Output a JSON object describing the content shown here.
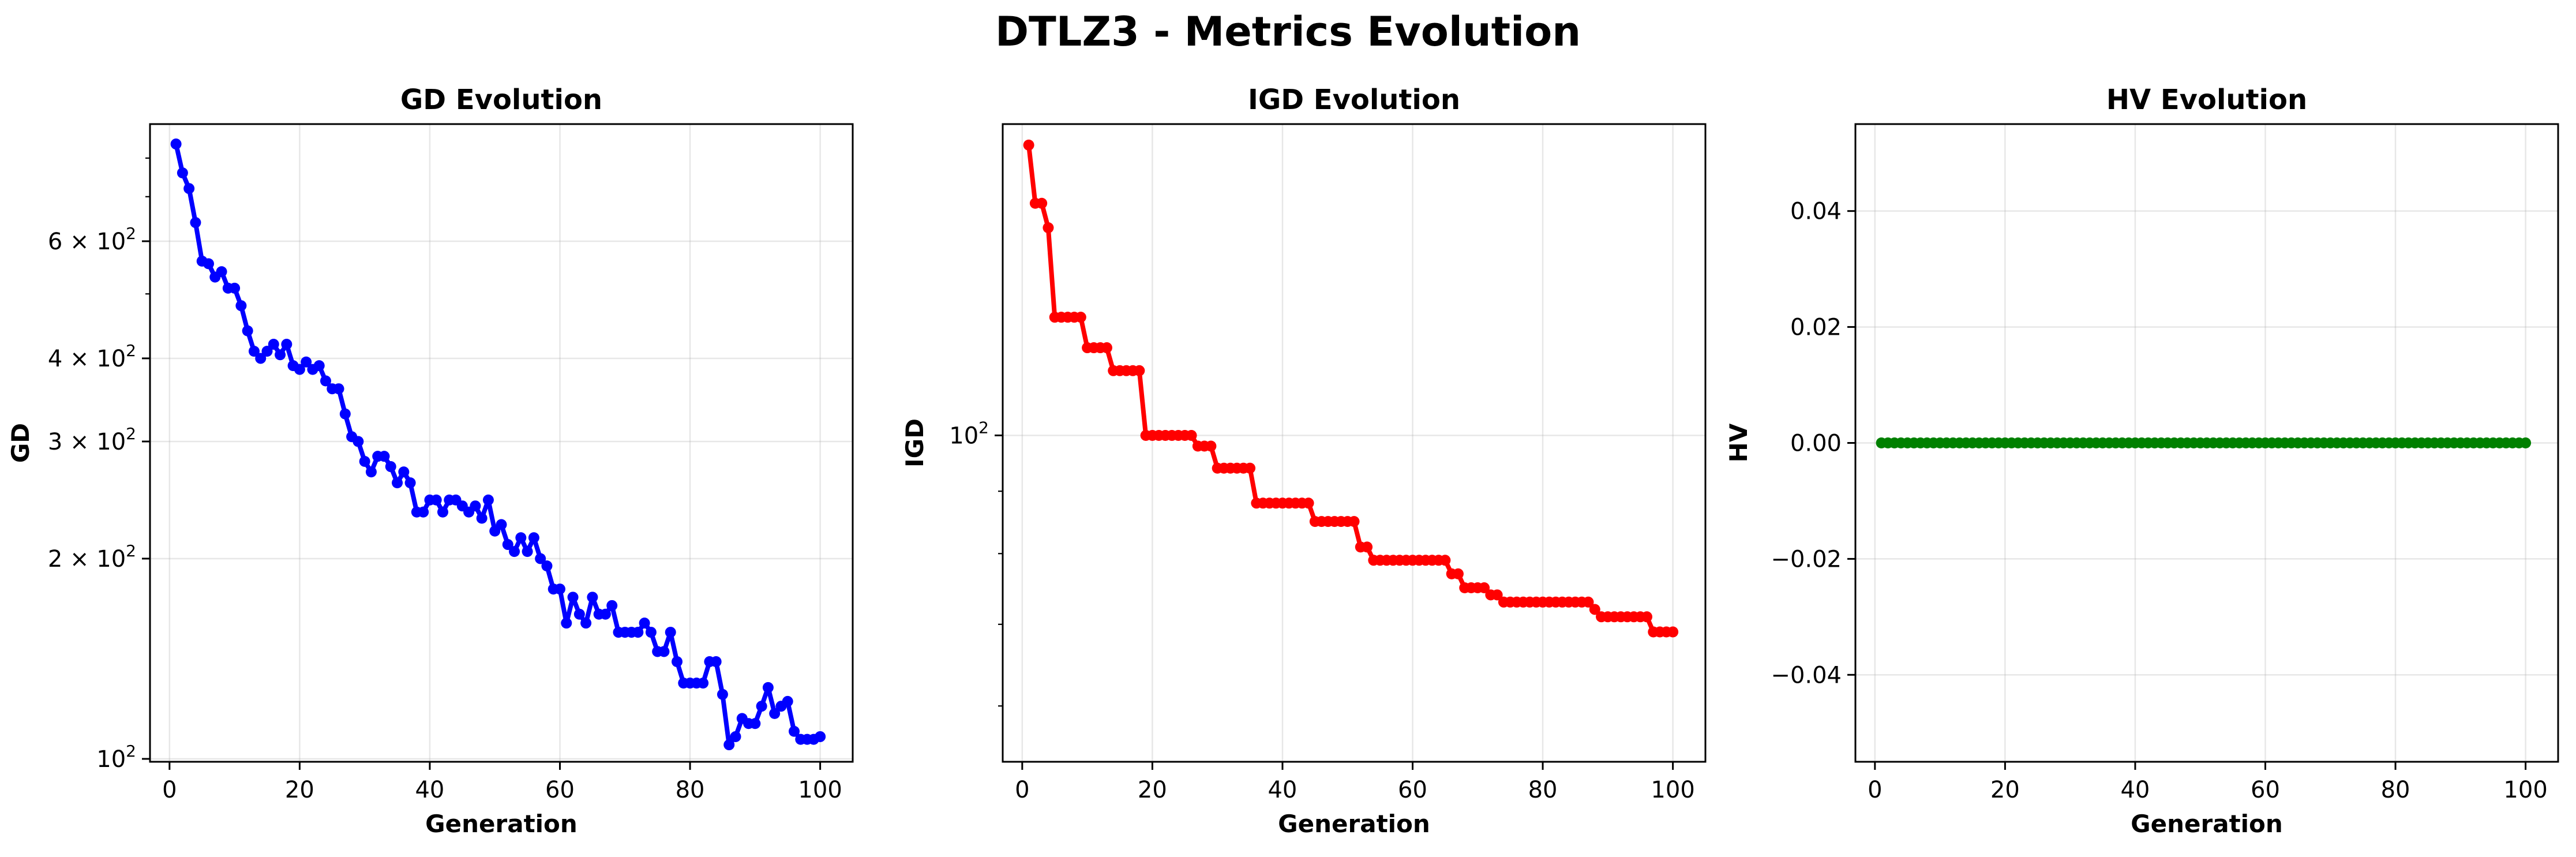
{
  "figure": {
    "title": "DTLZ3 - Metrics Evolution"
  },
  "chart_data": [
    {
      "type": "line",
      "title": "GD Evolution",
      "xlabel": "Generation",
      "ylabel": "GD",
      "yscale": "log",
      "grid": true,
      "xlim": [
        -3,
        105
      ],
      "ylim": [
        99,
        900
      ],
      "xticks": [
        0,
        20,
        40,
        60,
        80,
        100
      ],
      "xtick_labels": [
        "0",
        "20",
        "40",
        "60",
        "80",
        "100"
      ],
      "yticks_major": [
        100,
        200,
        300,
        400,
        600
      ],
      "ytick_labels": [
        {
          "base": "10",
          "exp": "2",
          "mantissa": ""
        },
        {
          "base": "10",
          "exp": "2",
          "mantissa": "2 × "
        },
        {
          "base": "10",
          "exp": "2",
          "mantissa": "3 × "
        },
        {
          "base": "10",
          "exp": "2",
          "mantissa": "4 × "
        },
        {
          "base": "10",
          "exp": "2",
          "mantissa": "6 × "
        }
      ],
      "yticks_minor": [
        500,
        700,
        800
      ],
      "series": [
        {
          "color": "#0000ff",
          "x": [
            1,
            2,
            3,
            4,
            5,
            6,
            7,
            8,
            9,
            10,
            11,
            12,
            13,
            14,
            15,
            16,
            17,
            18,
            19,
            20,
            21,
            22,
            23,
            24,
            25,
            26,
            27,
            28,
            29,
            30,
            31,
            32,
            33,
            34,
            35,
            36,
            37,
            38,
            39,
            40,
            41,
            42,
            43,
            44,
            45,
            46,
            47,
            48,
            49,
            50,
            51,
            52,
            53,
            54,
            55,
            56,
            57,
            58,
            59,
            60,
            61,
            62,
            63,
            64,
            65,
            66,
            67,
            68,
            69,
            70,
            71,
            72,
            73,
            74,
            75,
            76,
            77,
            78,
            79,
            80,
            81,
            82,
            83,
            84,
            85,
            86,
            87,
            88,
            89,
            90,
            91,
            92,
            93,
            94,
            95,
            96,
            97,
            98,
            99,
            100
          ],
          "y": [
            840,
            760,
            720,
            640,
            560,
            555,
            530,
            540,
            510,
            510,
            480,
            440,
            410,
            400,
            410,
            420,
            405,
            420,
            390,
            385,
            395,
            385,
            390,
            370,
            360,
            360,
            330,
            305,
            300,
            280,
            270,
            285,
            285,
            275,
            260,
            270,
            260,
            235,
            235,
            245,
            245,
            235,
            245,
            245,
            240,
            235,
            240,
            230,
            245,
            220,
            225,
            210,
            205,
            215,
            205,
            215,
            200,
            195,
            180,
            180,
            160,
            175,
            165,
            160,
            175,
            165,
            165,
            170,
            155,
            155,
            155,
            155,
            160,
            155,
            145,
            145,
            155,
            140,
            130,
            130,
            130,
            130,
            140,
            140,
            125,
            105,
            108,
            115,
            113,
            113,
            120,
            128,
            117,
            120,
            122,
            110,
            107,
            107,
            107,
            108
          ]
        }
      ]
    },
    {
      "type": "line",
      "title": "IGD Evolution",
      "xlabel": "Generation",
      "ylabel": "IGD",
      "yscale": "log",
      "grid": true,
      "xlim": [
        -3,
        105
      ],
      "ylim": [
        54,
        180
      ],
      "xticks": [
        0,
        20,
        40,
        60,
        80,
        100
      ],
      "xtick_labels": [
        "0",
        "20",
        "40",
        "60",
        "80",
        "100"
      ],
      "yticks_major": [
        100
      ],
      "ytick_labels": [
        {
          "base": "10",
          "exp": "2",
          "mantissa": ""
        }
      ],
      "yticks_minor": [
        60,
        70,
        80,
        90
      ],
      "series": [
        {
          "color": "#ff0000",
          "x": [
            1,
            2,
            3,
            4,
            5,
            6,
            7,
            8,
            9,
            10,
            11,
            12,
            13,
            14,
            15,
            16,
            17,
            18,
            19,
            20,
            21,
            22,
            23,
            24,
            25,
            26,
            27,
            28,
            29,
            30,
            31,
            32,
            33,
            34,
            35,
            36,
            37,
            38,
            39,
            40,
            41,
            42,
            43,
            44,
            45,
            46,
            47,
            48,
            49,
            50,
            51,
            52,
            53,
            54,
            55,
            56,
            57,
            58,
            59,
            60,
            61,
            62,
            63,
            64,
            65,
            66,
            67,
            68,
            69,
            70,
            71,
            72,
            73,
            74,
            75,
            76,
            77,
            78,
            79,
            80,
            81,
            82,
            83,
            84,
            85,
            86,
            87,
            88,
            89,
            90,
            91,
            92,
            93,
            94,
            95,
            96,
            97,
            98,
            99,
            100
          ],
          "y": [
            173,
            155,
            155,
            148,
            125,
            125,
            125,
            125,
            125,
            118,
            118,
            118,
            118,
            113,
            113,
            113,
            113,
            113,
            100,
            100,
            100,
            100,
            100,
            100,
            100,
            100,
            98,
            98,
            98,
            94,
            94,
            94,
            94,
            94,
            94,
            88,
            88,
            88,
            88,
            88,
            88,
            88,
            88,
            88,
            85,
            85,
            85,
            85,
            85,
            85,
            85,
            81,
            81,
            79,
            79,
            79,
            79,
            79,
            79,
            79,
            79,
            79,
            79,
            79,
            79,
            77,
            77,
            75,
            75,
            75,
            75,
            74,
            74,
            73,
            73,
            73,
            73,
            73,
            73,
            73,
            73,
            73,
            73,
            73,
            73,
            73,
            73,
            72,
            71,
            71,
            71,
            71,
            71,
            71,
            71,
            71,
            69,
            69,
            69,
            69
          ]
        }
      ]
    },
    {
      "type": "line",
      "title": "HV Evolution",
      "xlabel": "Generation",
      "ylabel": "HV",
      "yscale": "linear",
      "grid": true,
      "xlim": [
        -3,
        105
      ],
      "ylim": [
        -0.055,
        0.055
      ],
      "xticks": [
        0,
        20,
        40,
        60,
        80,
        100
      ],
      "xtick_labels": [
        "0",
        "20",
        "40",
        "60",
        "80",
        "100"
      ],
      "yticks_major": [
        -0.04,
        -0.02,
        0.0,
        0.02,
        0.04
      ],
      "ytick_labels": [
        "−0.04",
        "−0.02",
        "0.00",
        "0.02",
        "0.04"
      ],
      "yticks_minor": [],
      "series": [
        {
          "color": "#008000",
          "x": [
            1,
            2,
            3,
            4,
            5,
            6,
            7,
            8,
            9,
            10,
            11,
            12,
            13,
            14,
            15,
            16,
            17,
            18,
            19,
            20,
            21,
            22,
            23,
            24,
            25,
            26,
            27,
            28,
            29,
            30,
            31,
            32,
            33,
            34,
            35,
            36,
            37,
            38,
            39,
            40,
            41,
            42,
            43,
            44,
            45,
            46,
            47,
            48,
            49,
            50,
            51,
            52,
            53,
            54,
            55,
            56,
            57,
            58,
            59,
            60,
            61,
            62,
            63,
            64,
            65,
            66,
            67,
            68,
            69,
            70,
            71,
            72,
            73,
            74,
            75,
            76,
            77,
            78,
            79,
            80,
            81,
            82,
            83,
            84,
            85,
            86,
            87,
            88,
            89,
            90,
            91,
            92,
            93,
            94,
            95,
            96,
            97,
            98,
            99,
            100
          ],
          "y": [
            0,
            0,
            0,
            0,
            0,
            0,
            0,
            0,
            0,
            0,
            0,
            0,
            0,
            0,
            0,
            0,
            0,
            0,
            0,
            0,
            0,
            0,
            0,
            0,
            0,
            0,
            0,
            0,
            0,
            0,
            0,
            0,
            0,
            0,
            0,
            0,
            0,
            0,
            0,
            0,
            0,
            0,
            0,
            0,
            0,
            0,
            0,
            0,
            0,
            0,
            0,
            0,
            0,
            0,
            0,
            0,
            0,
            0,
            0,
            0,
            0,
            0,
            0,
            0,
            0,
            0,
            0,
            0,
            0,
            0,
            0,
            0,
            0,
            0,
            0,
            0,
            0,
            0,
            0,
            0,
            0,
            0,
            0,
            0,
            0,
            0,
            0,
            0,
            0,
            0,
            0,
            0,
            0,
            0,
            0,
            0,
            0,
            0,
            0,
            0
          ]
        }
      ]
    }
  ]
}
